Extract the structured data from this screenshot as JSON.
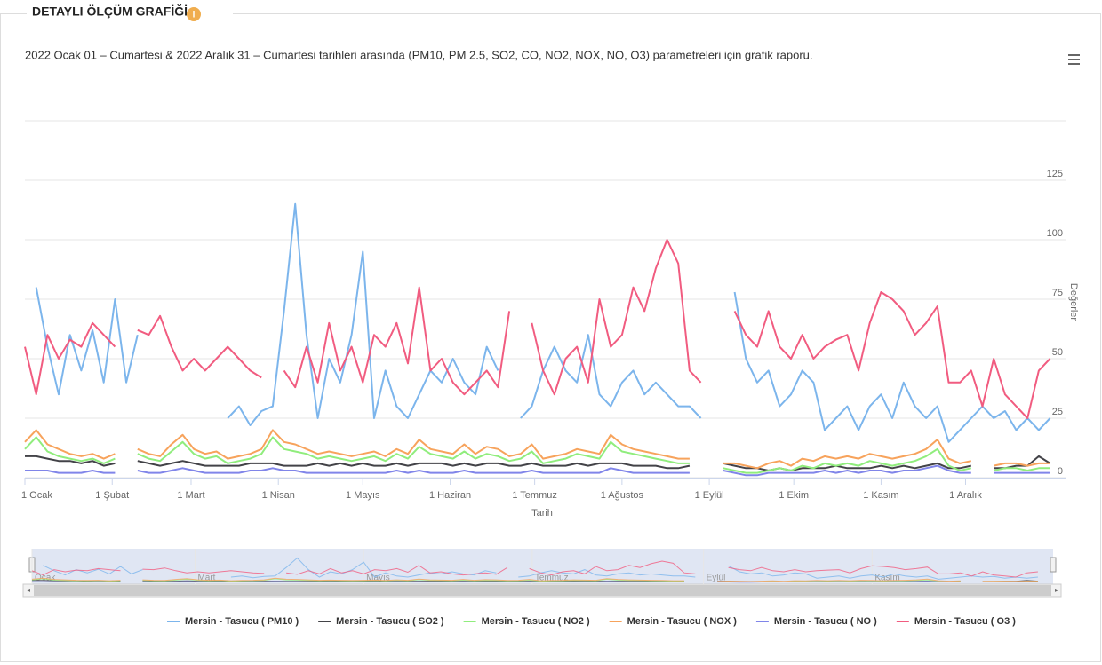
{
  "header": {
    "title": "DETAYLI ÖLÇÜM GRAFİĞİ"
  },
  "chart_data": {
    "type": "line",
    "subtitle": "2022 Ocak 01 – Cumartesi & 2022 Aralık 31 – Cumartesi tarihleri arasında (PM10, PM 2.5, SO2, CO, NO2, NOX, NO, O3) parametreleri için grafik raporu.",
    "x_label": "Tarih",
    "y_label": "Değerler",
    "x": [
      0,
      4,
      8,
      12,
      16,
      20,
      24,
      28,
      32,
      36,
      40,
      44,
      48,
      52,
      56,
      60,
      64,
      68,
      72,
      76,
      80,
      84,
      88,
      92,
      96,
      100,
      104,
      108,
      112,
      116,
      120,
      124,
      128,
      132,
      136,
      140,
      144,
      148,
      152,
      156,
      160,
      164,
      168,
      172,
      176,
      180,
      184,
      188,
      192,
      196,
      200,
      204,
      208,
      212,
      216,
      220,
      224,
      228,
      232,
      236,
      240,
      244,
      248,
      252,
      256,
      260,
      264,
      268,
      272,
      276,
      280,
      284,
      288,
      292,
      296,
      300,
      304,
      308,
      312,
      316,
      320,
      324,
      328,
      332,
      336,
      340,
      344,
      348,
      352,
      356,
      360,
      364
    ],
    "xlim": [
      0,
      369.5
    ],
    "xticks": [
      {
        "value": 0,
        "label": "1 Ocak"
      },
      {
        "value": 31,
        "label": "1 Şubat"
      },
      {
        "value": 59,
        "label": "1 Mart"
      },
      {
        "value": 90,
        "label": "1 Nisan"
      },
      {
        "value": 120,
        "label": "1 Mayıs"
      },
      {
        "value": 151,
        "label": "1 Haziran"
      },
      {
        "value": 181,
        "label": "1 Temmuz"
      },
      {
        "value": 212,
        "label": "1 Ağustos"
      },
      {
        "value": 243,
        "label": "1 Eylül"
      },
      {
        "value": 273,
        "label": "1 Ekim"
      },
      {
        "value": 304,
        "label": "1 Kasım"
      },
      {
        "value": 334,
        "label": "1 Aralık"
      }
    ],
    "ylim": [
      0,
      150
    ],
    "yticks": [
      0,
      25,
      50,
      75,
      100,
      125
    ],
    "grid": true,
    "navigator_ticks": [
      {
        "value": 0,
        "label": "Ocak"
      },
      {
        "value": 59,
        "label": "Mart"
      },
      {
        "value": 120,
        "label": "Mayıs"
      },
      {
        "value": 181,
        "label": "Temmuz"
      },
      {
        "value": 243,
        "label": "Eylül"
      },
      {
        "value": 304,
        "label": "Kasım"
      }
    ],
    "series": [
      {
        "name": "Mersin - Tasucu ( PM10 )",
        "color": "#7cb5ec",
        "values": [
          null,
          80,
          55,
          35,
          60,
          45,
          62,
          40,
          75,
          40,
          60,
          null,
          null,
          null,
          null,
          null,
          null,
          null,
          25,
          30,
          22,
          28,
          30,
          70,
          115,
          60,
          25,
          50,
          40,
          60,
          95,
          25,
          45,
          30,
          25,
          35,
          45,
          40,
          50,
          40,
          35,
          55,
          45,
          null,
          25,
          30,
          45,
          55,
          45,
          40,
          60,
          35,
          30,
          40,
          45,
          35,
          40,
          35,
          30,
          30,
          25,
          null,
          null,
          78,
          50,
          40,
          45,
          30,
          35,
          45,
          40,
          20,
          25,
          30,
          20,
          30,
          35,
          25,
          40,
          30,
          25,
          30,
          15,
          20,
          25,
          30,
          25,
          28,
          20,
          25,
          20,
          25
        ]
      },
      {
        "name": "Mersin - Tasucu ( SO2 )",
        "color": "#434348",
        "values": [
          9,
          9,
          8,
          7,
          7,
          6,
          7,
          5,
          6,
          null,
          7,
          6,
          5,
          6,
          7,
          6,
          5,
          5,
          5,
          5,
          6,
          6,
          6,
          5,
          5,
          5,
          6,
          5,
          6,
          5,
          6,
          5,
          5,
          6,
          5,
          6,
          6,
          6,
          5,
          6,
          5,
          6,
          6,
          5,
          5,
          6,
          5,
          5,
          5,
          6,
          5,
          6,
          6,
          6,
          5,
          5,
          5,
          4,
          4,
          5,
          null,
          null,
          6,
          5,
          4,
          4,
          3,
          4,
          3,
          4,
          4,
          4,
          5,
          4,
          4,
          4,
          5,
          4,
          5,
          4,
          5,
          6,
          4,
          4,
          5,
          null,
          4,
          4,
          5,
          5,
          9,
          6
        ]
      },
      {
        "name": "Mersin - Tasucu ( NO2 )",
        "color": "#90ed7d",
        "values": [
          12,
          17,
          11,
          9,
          8,
          7,
          8,
          6,
          8,
          null,
          10,
          8,
          7,
          11,
          15,
          10,
          8,
          9,
          6,
          7,
          8,
          10,
          17,
          12,
          11,
          10,
          8,
          9,
          8,
          7,
          8,
          9,
          7,
          10,
          8,
          13,
          10,
          9,
          8,
          11,
          8,
          10,
          9,
          7,
          8,
          11,
          6,
          7,
          8,
          10,
          9,
          8,
          15,
          11,
          10,
          9,
          8,
          7,
          6,
          6,
          null,
          null,
          4,
          3,
          2,
          2,
          3,
          4,
          3,
          5,
          4,
          6,
          5,
          6,
          5,
          7,
          6,
          5,
          6,
          7,
          9,
          12,
          5,
          3,
          4,
          null,
          3,
          4,
          4,
          3,
          4,
          4
        ]
      },
      {
        "name": "Mersin - Tasucu ( NOX )",
        "color": "#f7a35c",
        "values": [
          15,
          20,
          14,
          12,
          10,
          9,
          10,
          8,
          10,
          null,
          12,
          10,
          9,
          14,
          18,
          12,
          10,
          11,
          8,
          9,
          10,
          12,
          20,
          15,
          14,
          12,
          10,
          11,
          10,
          9,
          10,
          11,
          9,
          12,
          10,
          16,
          12,
          11,
          10,
          14,
          10,
          13,
          12,
          9,
          10,
          14,
          8,
          9,
          10,
          12,
          11,
          10,
          18,
          14,
          12,
          11,
          10,
          9,
          8,
          8,
          null,
          null,
          6,
          6,
          5,
          4,
          6,
          7,
          5,
          8,
          7,
          9,
          8,
          9,
          8,
          10,
          9,
          8,
          9,
          10,
          12,
          16,
          8,
          6,
          7,
          null,
          5,
          6,
          6,
          5,
          6,
          6
        ]
      },
      {
        "name": "Mersin - Tasucu ( NO )",
        "color": "#8085e9",
        "values": [
          3,
          3,
          3,
          2,
          2,
          2,
          3,
          2,
          2,
          null,
          3,
          2,
          2,
          3,
          4,
          3,
          2,
          2,
          2,
          2,
          3,
          3,
          4,
          3,
          3,
          2,
          2,
          2,
          2,
          2,
          2,
          2,
          2,
          3,
          2,
          3,
          2,
          2,
          2,
          3,
          2,
          2,
          2,
          2,
          2,
          3,
          2,
          2,
          2,
          2,
          2,
          2,
          4,
          3,
          2,
          2,
          2,
          2,
          2,
          2,
          null,
          null,
          3,
          2,
          1,
          1,
          2,
          2,
          2,
          2,
          2,
          3,
          2,
          3,
          2,
          3,
          3,
          2,
          3,
          3,
          4,
          5,
          3,
          2,
          2,
          null,
          2,
          2,
          2,
          2,
          2,
          2
        ]
      },
      {
        "name": "Mersin - Tasucu ( O3 )",
        "color": "#f15c80",
        "values": [
          55,
          35,
          60,
          50,
          58,
          55,
          65,
          60,
          55,
          null,
          62,
          60,
          68,
          55,
          45,
          50,
          45,
          50,
          55,
          50,
          45,
          42,
          null,
          45,
          38,
          55,
          40,
          65,
          45,
          55,
          40,
          60,
          55,
          65,
          48,
          80,
          45,
          50,
          40,
          35,
          40,
          45,
          38,
          70,
          null,
          65,
          45,
          35,
          50,
          55,
          40,
          75,
          55,
          60,
          80,
          70,
          88,
          100,
          90,
          45,
          40,
          null,
          null,
          70,
          60,
          55,
          70,
          55,
          50,
          60,
          50,
          55,
          58,
          60,
          45,
          65,
          78,
          75,
          70,
          60,
          65,
          72,
          40,
          40,
          45,
          30,
          50,
          35,
          30,
          25,
          45,
          50
        ]
      }
    ]
  }
}
